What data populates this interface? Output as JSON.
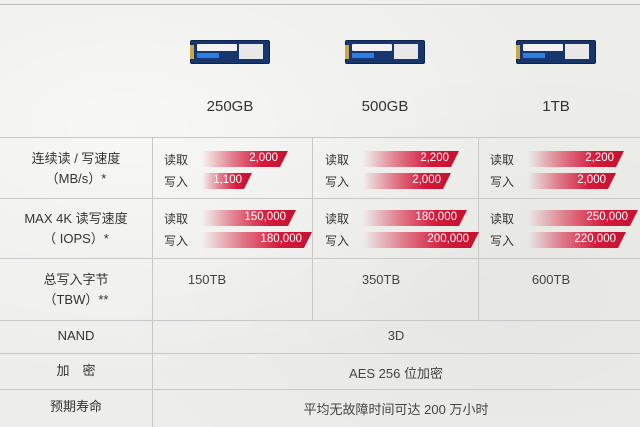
{
  "products": [
    {
      "capacity": "250GB"
    },
    {
      "capacity": "500GB"
    },
    {
      "capacity": "1TB"
    }
  ],
  "rows": {
    "seq": {
      "label1": "连续读 / 写速度",
      "label2": "（MB/s）*"
    },
    "rand": {
      "label1": "MAX 4K 读写速度",
      "label2": "（ IOPS）*"
    },
    "tbw": {
      "label1": "总写入字节",
      "label2": "（TBW）**"
    },
    "nand": {
      "label": "NAND"
    },
    "enc": {
      "label": "加　密"
    },
    "life": {
      "label": "预期寿命"
    }
  },
  "metric_labels": {
    "read": "读取",
    "write": "写入"
  },
  "seq_values": [
    {
      "read": "2,000",
      "write": "1,100"
    },
    {
      "read": "2,200",
      "write": "2,000"
    },
    {
      "read": "2,200",
      "write": "2,000"
    }
  ],
  "rand_values": [
    {
      "read": "150,000",
      "write": "180,000"
    },
    {
      "read": "180,000",
      "write": "200,000"
    },
    {
      "read": "250,000",
      "write": "220,000"
    }
  ],
  "tbw_values": [
    "150TB",
    "350TB",
    "600TB"
  ],
  "nand_value": "3D",
  "enc_value": "AES 256 位加密",
  "life_value": "平均无故障时间可达 200 万小时",
  "colors": {
    "bar": "#d41a3c",
    "background": "#ededea",
    "ssd": "#17366e"
  }
}
